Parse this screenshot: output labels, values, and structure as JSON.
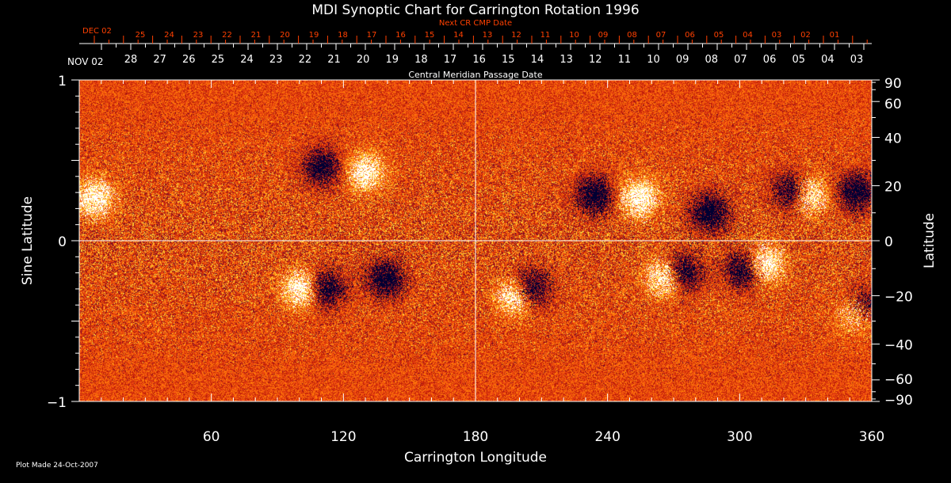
{
  "chart_data": {
    "type": "heatmap",
    "title": "MDI Synoptic Chart for Carrington Rotation 1996",
    "xlabel": "Carrington Longitude",
    "ylabel_left": "Sine Latitude",
    "ylabel_right": "Latitude",
    "xlim": [
      0,
      360
    ],
    "ylim": [
      -1,
      1
    ],
    "x_ticks": [
      "60",
      "120",
      "180",
      "240",
      "300",
      "360"
    ],
    "x_tick_values": [
      60,
      120,
      180,
      240,
      300,
      360
    ],
    "y_left_ticks": [
      "1",
      "0",
      "−1"
    ],
    "y_left_tick_values": [
      1,
      0,
      -1
    ],
    "y_right_ticks": [
      "90",
      "60",
      "40",
      "20",
      "0",
      "−20",
      "−40",
      "−60",
      "−90"
    ],
    "y_right_tick_values": [
      90,
      60,
      40,
      20,
      0,
      -20,
      -40,
      -60,
      -90
    ],
    "grid": "crosshair at longitude 180 and latitude 0",
    "colors": {
      "background": "#e84010",
      "positive": "#ffffff",
      "negative": "#000030",
      "grid": "#ffffff",
      "secondary_axis": "#ff4000"
    },
    "features": [
      {
        "lon": 110,
        "sinlat": 0.46,
        "polarity": "negative"
      },
      {
        "lon": 130,
        "sinlat": 0.43,
        "polarity": "positive"
      },
      {
        "lon": 7,
        "sinlat": 0.27,
        "polarity": "positive"
      },
      {
        "lon": 101,
        "sinlat": -0.3,
        "polarity": "positive"
      },
      {
        "lon": 112,
        "sinlat": -0.3,
        "polarity": "negative"
      },
      {
        "lon": 139,
        "sinlat": -0.24,
        "polarity": "negative"
      },
      {
        "lon": 205,
        "sinlat": -0.3,
        "polarity": "negative"
      },
      {
        "lon": 198,
        "sinlat": -0.35,
        "polarity": "positive"
      },
      {
        "lon": 266,
        "sinlat": -0.23,
        "polarity": "positive"
      },
      {
        "lon": 274,
        "sinlat": -0.2,
        "polarity": "negative"
      },
      {
        "lon": 302,
        "sinlat": -0.18,
        "polarity": "negative"
      },
      {
        "lon": 311,
        "sinlat": -0.15,
        "polarity": "positive"
      },
      {
        "lon": 331,
        "sinlat": 0.29,
        "polarity": "positive"
      },
      {
        "lon": 324,
        "sinlat": 0.31,
        "polarity": "negative"
      },
      {
        "lon": 353,
        "sinlat": 0.31,
        "polarity": "negative"
      },
      {
        "lon": 254,
        "sinlat": 0.27,
        "polarity": "positive"
      },
      {
        "lon": 234,
        "sinlat": 0.29,
        "polarity": "negative"
      },
      {
        "lon": 286,
        "sinlat": 0.18,
        "polarity": "negative"
      },
      {
        "lon": 353,
        "sinlat": -0.45,
        "polarity": "positive"
      },
      {
        "lon": 356,
        "sinlat": -0.41,
        "polarity": "negative"
      }
    ],
    "cmp_axis": {
      "label": "Central Meridian Passage Date",
      "start_label": "NOV 02",
      "dates": [
        "28",
        "27",
        "26",
        "25",
        "24",
        "23",
        "22",
        "21",
        "20",
        "19",
        "18",
        "17",
        "16",
        "15",
        "14",
        "13",
        "12",
        "11",
        "10",
        "09",
        "08",
        "07",
        "06",
        "05",
        "04",
        "03"
      ]
    },
    "next_cmp_axis": {
      "label": "Next CR CMP Date",
      "start_label": "DEC 02",
      "dates": [
        "25",
        "24",
        "23",
        "22",
        "21",
        "20",
        "19",
        "18",
        "17",
        "16",
        "15",
        "14",
        "13",
        "12",
        "11",
        "10",
        "09",
        "08",
        "07",
        "06",
        "05",
        "04",
        "03",
        "02",
        "01"
      ]
    }
  },
  "footer": {
    "plot_made": "Plot Made 24-Oct-2007"
  }
}
